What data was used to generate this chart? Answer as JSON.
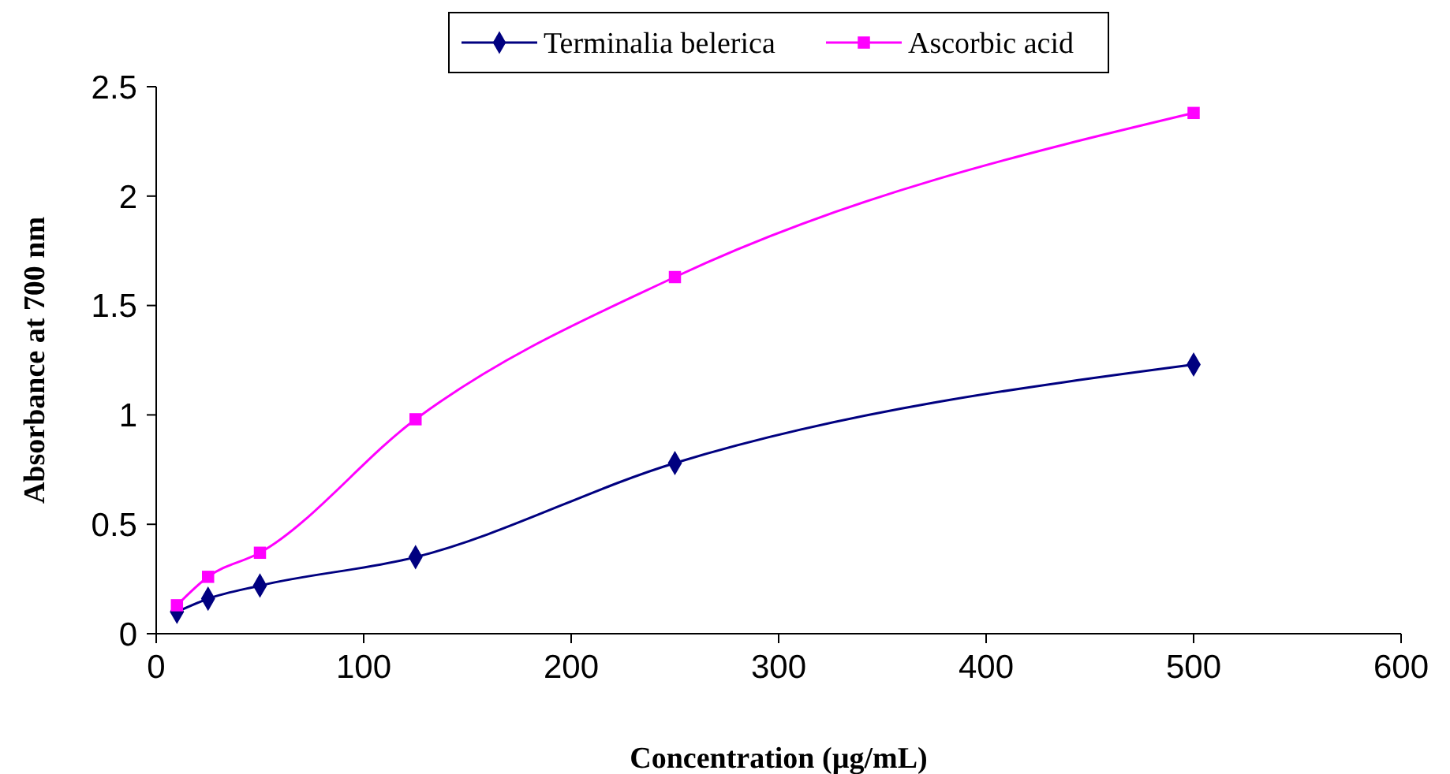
{
  "chart_data": {
    "type": "line",
    "xlabel": "Concentration (µg/mL)",
    "ylabel": "Absorbance at 700 nm",
    "x": [
      10,
      25,
      50,
      125,
      250,
      500
    ],
    "series": [
      {
        "name": "Terminalia belerica",
        "color": "#000080",
        "marker": "diamond",
        "values": [
          0.1,
          0.16,
          0.22,
          0.35,
          0.78,
          1.23
        ]
      },
      {
        "name": "Ascorbic acid",
        "color": "#ff00ff",
        "marker": "square",
        "values": [
          0.13,
          0.26,
          0.37,
          0.98,
          1.63,
          2.38
        ]
      }
    ],
    "xlim": [
      0,
      600
    ],
    "xticks": [
      0,
      100,
      200,
      300,
      400,
      500,
      600
    ],
    "ylim": [
      0,
      2.5
    ],
    "yticks": [
      0,
      0.5,
      1,
      1.5,
      2,
      2.5
    ],
    "grid": false,
    "legend": "top",
    "line_style": "solid"
  }
}
